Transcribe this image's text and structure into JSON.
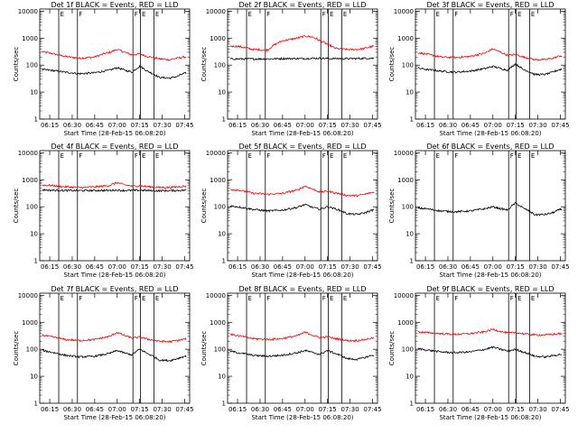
{
  "colors": {
    "events": "#000000",
    "lld": "#ff0000",
    "axes": "#000000",
    "background": "#ffffff"
  },
  "chart_data": {
    "type": "line",
    "layout": "3x3 grid",
    "shared": {
      "xlabel": "Start Time (28-Feb-15 06:08:20)",
      "ylabel": "Counts/sec",
      "x_ticks": [
        "06:15",
        "06:30",
        "06:45",
        "07:00",
        "07:15",
        "07:30",
        "07:45"
      ],
      "y_ticks": [
        "1",
        "10",
        "100",
        "1000",
        "10000"
      ],
      "xlim": [
        "06:08:20",
        "07:48:20"
      ],
      "ylim": [
        1,
        12000
      ],
      "y_scale": "log",
      "marker_lines": [
        {
          "time": "06:21:00",
          "label": "E"
        },
        {
          "time": "06:33:30",
          "label": "F"
        },
        {
          "time": "07:10:30",
          "label": "F"
        },
        {
          "time": "07:15:30",
          "label": "E"
        },
        {
          "time": "07:24:30",
          "label": "E"
        }
      ],
      "sample_times": [
        "06:08",
        "06:15",
        "06:25",
        "06:35",
        "06:45",
        "06:55",
        "07:00",
        "07:05",
        "07:10",
        "07:15",
        "07:20",
        "07:28",
        "07:35",
        "07:40",
        "07:45"
      ]
    },
    "panels": [
      {
        "title": "Det 1f BLACK = Events, RED = LLD",
        "events": [
          70,
          65,
          55,
          48,
          52,
          65,
          80,
          65,
          55,
          90,
          60,
          35,
          33,
          38,
          50
        ],
        "lld": [
          330,
          280,
          210,
          180,
          200,
          300,
          380,
          300,
          240,
          260,
          210,
          170,
          160,
          180,
          200
        ]
      },
      {
        "title": "Det 2f BLACK = Events, RED = LLD",
        "events": [
          170,
          170,
          170,
          170,
          175,
          175,
          175,
          180,
          180,
          175,
          175,
          175,
          175,
          180,
          180
        ],
        "lld": [
          500,
          500,
          380,
          360,
          800,
          1000,
          1200,
          1100,
          800,
          600,
          420,
          380,
          380,
          420,
          500
        ]
      },
      {
        "title": "Det 3f BLACK = Events, RED = LLD",
        "events": [
          80,
          70,
          60,
          55,
          60,
          75,
          90,
          75,
          65,
          110,
          70,
          45,
          45,
          55,
          70
        ],
        "lld": [
          300,
          260,
          200,
          190,
          210,
          280,
          400,
          300,
          230,
          250,
          200,
          160,
          160,
          180,
          220
        ]
      },
      {
        "title": "Det 4f BLACK = Events, RED = LLD",
        "events": [
          430,
          410,
          400,
          395,
          400,
          405,
          410,
          400,
          400,
          410,
          400,
          390,
          395,
          400,
          410
        ],
        "lld": [
          640,
          620,
          550,
          520,
          540,
          620,
          780,
          650,
          580,
          600,
          560,
          520,
          520,
          550,
          580
        ]
      },
      {
        "title": "Det 5f BLACK = Events, RED = LLD",
        "events": [
          110,
          100,
          80,
          70,
          75,
          95,
          120,
          95,
          80,
          100,
          85,
          55,
          52,
          60,
          75
        ],
        "lld": [
          450,
          420,
          320,
          290,
          310,
          420,
          580,
          450,
          350,
          380,
          330,
          260,
          260,
          290,
          340
        ]
      },
      {
        "title": "Det 6f BLACK = Events, RED = LLD",
        "events": [
          90,
          85,
          70,
          65,
          70,
          85,
          100,
          85,
          75,
          135,
          90,
          50,
          52,
          60,
          80
        ],
        "lld": []
      },
      {
        "title": "Det 7f BLACK = Events, RED = LLD",
        "events": [
          95,
          80,
          60,
          52,
          55,
          70,
          90,
          72,
          62,
          100,
          70,
          40,
          38,
          45,
          55
        ],
        "lld": [
          350,
          300,
          230,
          210,
          230,
          300,
          420,
          320,
          260,
          280,
          240,
          200,
          190,
          210,
          240
        ]
      },
      {
        "title": "Det 8f BLACK = Events, RED = LLD",
        "events": [
          90,
          75,
          60,
          55,
          60,
          75,
          90,
          75,
          65,
          90,
          70,
          45,
          42,
          50,
          60
        ],
        "lld": [
          380,
          320,
          250,
          230,
          250,
          320,
          430,
          330,
          270,
          290,
          250,
          210,
          210,
          230,
          260
        ]
      },
      {
        "title": "Det 9f BLACK = Events, RED = LLD",
        "events": [
          110,
          95,
          80,
          75,
          80,
          100,
          120,
          100,
          85,
          100,
          80,
          55,
          52,
          58,
          65
        ],
        "lld": [
          450,
          420,
          380,
          360,
          380,
          450,
          550,
          460,
          400,
          420,
          380,
          340,
          340,
          360,
          380
        ]
      }
    ]
  }
}
